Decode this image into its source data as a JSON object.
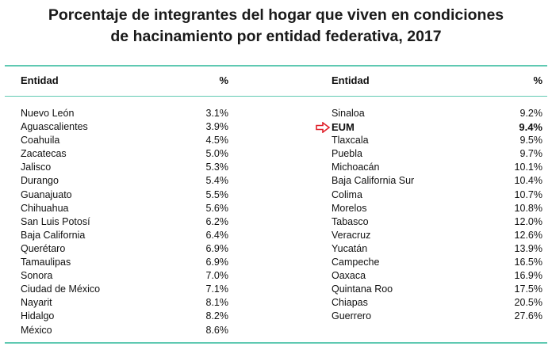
{
  "title": {
    "line1": "Porcentaje de integrantes del hogar que viven en condiciones",
    "line2": "de hacinamiento por entidad federativa, 2017"
  },
  "columns": {
    "entity_label": "Entidad",
    "pct_label": "%"
  },
  "left_rows": [
    {
      "name": "Nuevo León",
      "pct": "3.1%"
    },
    {
      "name": "Aguascalientes",
      "pct": "3.9%"
    },
    {
      "name": "Coahuila",
      "pct": "4.5%"
    },
    {
      "name": "Zacatecas",
      "pct": "5.0%"
    },
    {
      "name": "Jalisco",
      "pct": "5.3%"
    },
    {
      "name": "Durango",
      "pct": "5.4%"
    },
    {
      "name": "Guanajuato",
      "pct": "5.5%"
    },
    {
      "name": "Chihuahua",
      "pct": "5.6%"
    },
    {
      "name": "San Luis Potosí",
      "pct": "6.2%"
    },
    {
      "name": "Baja California",
      "pct": "6.4%"
    },
    {
      "name": "Querétaro",
      "pct": "6.9%"
    },
    {
      "name": "Tamaulipas",
      "pct": "6.9%"
    },
    {
      "name": "Sonora",
      "pct": "7.0%"
    },
    {
      "name": "Ciudad de México",
      "pct": "7.1%"
    },
    {
      "name": "Nayarit",
      "pct": "8.1%"
    },
    {
      "name": "Hidalgo",
      "pct": "8.2%"
    },
    {
      "name": "México",
      "pct": "8.6%"
    }
  ],
  "right_rows": [
    {
      "name": "Sinaloa",
      "pct": "9.2%"
    },
    {
      "name": "EUM",
      "pct": "9.4%",
      "highlight": true
    },
    {
      "name": "Tlaxcala",
      "pct": "9.5%"
    },
    {
      "name": "Puebla",
      "pct": "9.7%"
    },
    {
      "name": "Michoacán",
      "pct": "10.1%"
    },
    {
      "name": "Baja California Sur",
      "pct": "10.4%"
    },
    {
      "name": "Colima",
      "pct": "10.7%"
    },
    {
      "name": "Morelos",
      "pct": "10.8%"
    },
    {
      "name": "Tabasco",
      "pct": "12.0%"
    },
    {
      "name": "Veracruz",
      "pct": "12.6%"
    },
    {
      "name": "Yucatán",
      "pct": "13.9%"
    },
    {
      "name": "Campeche",
      "pct": "16.5%"
    },
    {
      "name": "Oaxaca",
      "pct": "16.9%"
    },
    {
      "name": "Quintana Roo",
      "pct": "17.5%"
    },
    {
      "name": "Chiapas",
      "pct": "20.5%"
    },
    {
      "name": "Guerrero",
      "pct": "27.6%"
    }
  ],
  "colors": {
    "rule": "#5fc9b2",
    "arrow": "#e0202a"
  },
  "icons": {
    "highlight_marker": "right-arrow-icon"
  }
}
